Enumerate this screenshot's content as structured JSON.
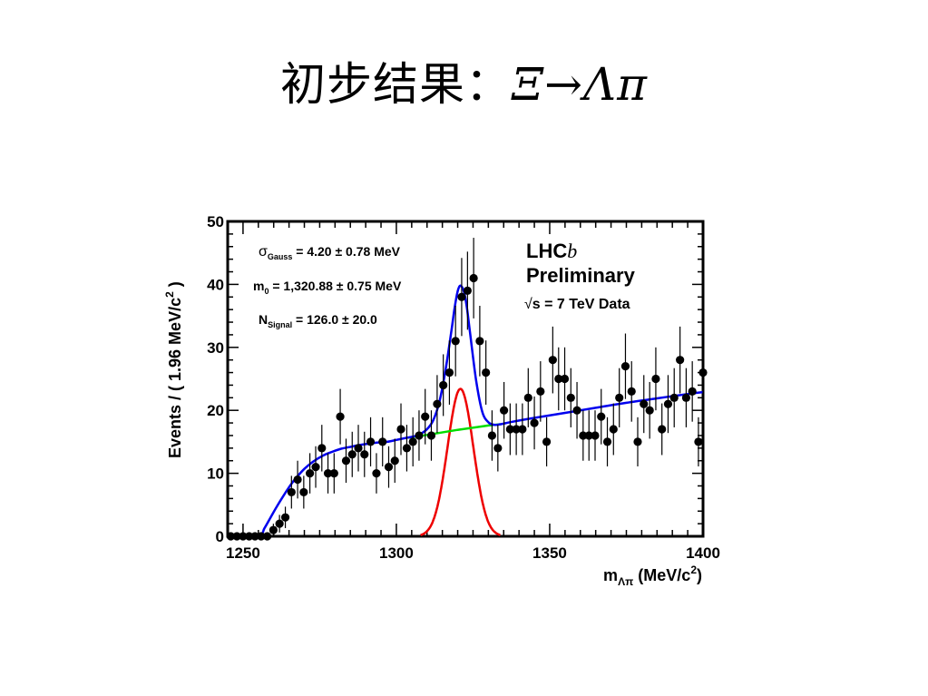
{
  "slide": {
    "title_cn": "初步结果：",
    "title_math": "Ξ→Λπ"
  },
  "chart_data": {
    "type": "scatter",
    "xlabel_main": "m",
    "xlabel_sub": "Λπ",
    "xlabel_unit_pre": "(MeV/c",
    "xlabel_unit_sup": "2",
    "xlabel_unit_post": ")",
    "ylabel_main": "Events / ( 1.96 MeV/c",
    "ylabel_sup": "2",
    "ylabel_post": " )",
    "xlim": [
      1245,
      1400
    ],
    "ylim": [
      0,
      50
    ],
    "xticks": [
      1250,
      1300,
      1350,
      1400
    ],
    "yticks": [
      0,
      10,
      20,
      30,
      40,
      50
    ],
    "grid": false,
    "annotations": {
      "sigma": {
        "sym": "σ",
        "sub": "Gauss",
        "text": " = 4.20 ± 0.78 MeV"
      },
      "m0": {
        "sym": "m",
        "sub": "0",
        "text": " = 1,320.88 ± 0.75 MeV"
      },
      "nsig": {
        "sym": "N",
        "sub": "Signal",
        "text": " = 126.0 ± 20.0"
      },
      "lhcb_main": "LHC",
      "lhcb_b": "b",
      "preliminary": "Preliminary",
      "energy_root": "√",
      "energy_text": "s = 7 TeV Data"
    },
    "series": [
      {
        "kind": "data",
        "x": [
          1246.0,
          1248.0,
          1250.0,
          1252.0,
          1253.9,
          1255.9,
          1257.9,
          1259.9,
          1261.9,
          1263.8,
          1265.8,
          1267.8,
          1269.8,
          1271.8,
          1273.7,
          1275.7,
          1277.7,
          1279.7,
          1281.7,
          1283.6,
          1285.6,
          1287.6,
          1289.6,
          1291.6,
          1293.5,
          1295.5,
          1297.5,
          1299.5,
          1301.5,
          1303.4,
          1305.4,
          1307.4,
          1309.4,
          1311.4,
          1313.3,
          1315.3,
          1317.3,
          1319.3,
          1321.3,
          1323.2,
          1325.2,
          1327.2,
          1329.2,
          1331.2,
          1333.1,
          1335.1,
          1337.1,
          1339.1,
          1341.1,
          1343.0,
          1345.0,
          1347.0,
          1349.0,
          1351.0,
          1352.9,
          1354.9,
          1356.9,
          1358.9,
          1360.9,
          1362.8,
          1364.8,
          1366.8,
          1368.8,
          1370.8,
          1372.7,
          1374.7,
          1376.7,
          1378.7,
          1380.7,
          1382.6,
          1384.6,
          1386.6,
          1388.6,
          1390.6,
          1392.5,
          1394.5,
          1396.5,
          1398.5,
          1400.0
        ],
        "y": [
          0,
          0,
          0,
          0,
          0,
          0,
          0,
          1,
          2,
          3,
          7,
          9,
          7,
          10,
          11,
          14,
          10,
          10,
          19,
          12,
          13,
          14,
          13,
          15,
          10,
          15,
          11,
          12,
          17,
          14,
          15,
          16,
          19,
          16,
          21,
          24,
          26,
          31,
          38,
          39,
          41,
          31,
          26,
          16,
          14,
          20,
          17,
          17,
          17,
          22,
          18,
          23,
          15,
          28,
          25,
          25,
          22,
          20,
          16,
          16,
          16,
          19,
          15,
          17,
          22,
          27,
          23,
          15,
          21,
          20,
          25,
          17,
          21,
          22,
          28,
          22,
          23,
          15,
          26
        ]
      },
      {
        "kind": "errors",
        "err": [
          0,
          0,
          0,
          0,
          0,
          0,
          0,
          1.0,
          1.4,
          1.7,
          2.6,
          3.0,
          2.6,
          3.2,
          3.3,
          3.7,
          3.2,
          3.2,
          4.4,
          3.5,
          3.6,
          3.7,
          3.6,
          3.9,
          3.2,
          3.9,
          3.3,
          3.5,
          4.1,
          3.7,
          3.9,
          4.0,
          4.4,
          4.0,
          4.6,
          4.9,
          5.1,
          5.6,
          6.2,
          6.2,
          6.4,
          5.6,
          5.1,
          4.0,
          3.7,
          4.5,
          4.1,
          4.1,
          4.1,
          4.7,
          4.2,
          4.8,
          3.9,
          5.3,
          5.0,
          5.0,
          4.7,
          4.5,
          4.0,
          4.0,
          4.0,
          4.4,
          3.9,
          4.1,
          4.7,
          5.2,
          4.8,
          3.9,
          4.6,
          4.5,
          5.0,
          4.1,
          4.6,
          4.7,
          5.3,
          4.7,
          4.8,
          3.9,
          5.1
        ]
      },
      {
        "kind": "total_fit",
        "color": "#0000ee",
        "x": [
          1246,
          1255,
          1257,
          1259,
          1261,
          1263,
          1265,
          1267,
          1270,
          1273,
          1276,
          1279,
          1282,
          1285,
          1288,
          1291,
          1294,
          1297,
          1300,
          1303,
          1306,
          1308,
          1310,
          1312,
          1314,
          1316,
          1318,
          1319,
          1320,
          1320.9,
          1322,
          1323,
          1324,
          1326,
          1328,
          1330,
          1332,
          1334,
          1338,
          1345,
          1355,
          1365,
          1375,
          1385,
          1395,
          1400
        ],
        "y": [
          0,
          0,
          1.3,
          3.0,
          4.7,
          6.3,
          7.8,
          9.1,
          10.7,
          11.9,
          12.8,
          13.4,
          13.9,
          14.2,
          14.5,
          14.7,
          14.9,
          15.0,
          15.3,
          15.6,
          15.9,
          16.3,
          17.0,
          18.4,
          21.3,
          26.3,
          32.8,
          36.3,
          38.9,
          39.8,
          38.9,
          36.3,
          32.4,
          24.8,
          19.8,
          18.1,
          17.7,
          17.8,
          18.2,
          18.8,
          19.6,
          20.4,
          21.2,
          21.9,
          22.6,
          22.9
        ]
      },
      {
        "kind": "background",
        "color": "#00dd00",
        "x": [
          1303,
          1310,
          1320,
          1330,
          1334
        ],
        "y": [
          15.6,
          16.1,
          16.9,
          17.6,
          17.8
        ]
      },
      {
        "kind": "signal",
        "color": "#ee0000",
        "mean": 1320.9,
        "sigma": 4.2,
        "peak": 23.4
      }
    ]
  }
}
